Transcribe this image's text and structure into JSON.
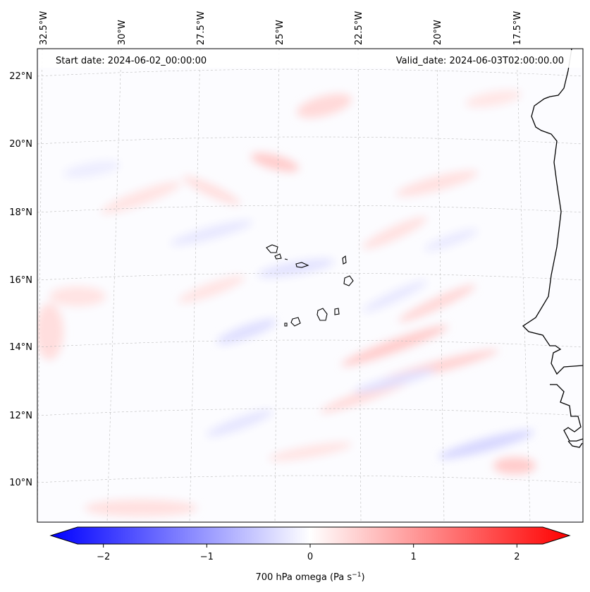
{
  "header": {
    "start_date": "Start date: 2024-06-02_00:00:00",
    "valid_date": "Valid_date: 2024-06-03T02:00:00.00"
  },
  "longitude_labels": [
    "32.5°W",
    "30°W",
    "27.5°W",
    "25°W",
    "22.5°W",
    "20°W",
    "17.5°W"
  ],
  "latitude_labels": [
    "22°N",
    "20°N",
    "18°N",
    "16°N",
    "14°N",
    "12°N",
    "10°N"
  ],
  "colorbar": {
    "label": "700 hPa omega (Pa s",
    "label_exponent": "−1",
    "label_close": ")",
    "ticks": [
      {
        "value": -2,
        "label": "−2"
      },
      {
        "value": -1,
        "label": "−1"
      },
      {
        "value": 0,
        "label": "0"
      },
      {
        "value": 1,
        "label": "1"
      },
      {
        "value": 2,
        "label": "2"
      }
    ],
    "range": [
      -2.5,
      2.5
    ],
    "colormap": "bwr",
    "color_min": "#0000ff",
    "color_mid": "#ffffff",
    "color_max": "#ff0000"
  },
  "map": {
    "projection": "lambert-conformal",
    "lon_range": [
      -33,
      -15
    ],
    "lat_range": [
      9,
      22.5
    ],
    "gridlines": true,
    "field": "700 hPa omega"
  }
}
